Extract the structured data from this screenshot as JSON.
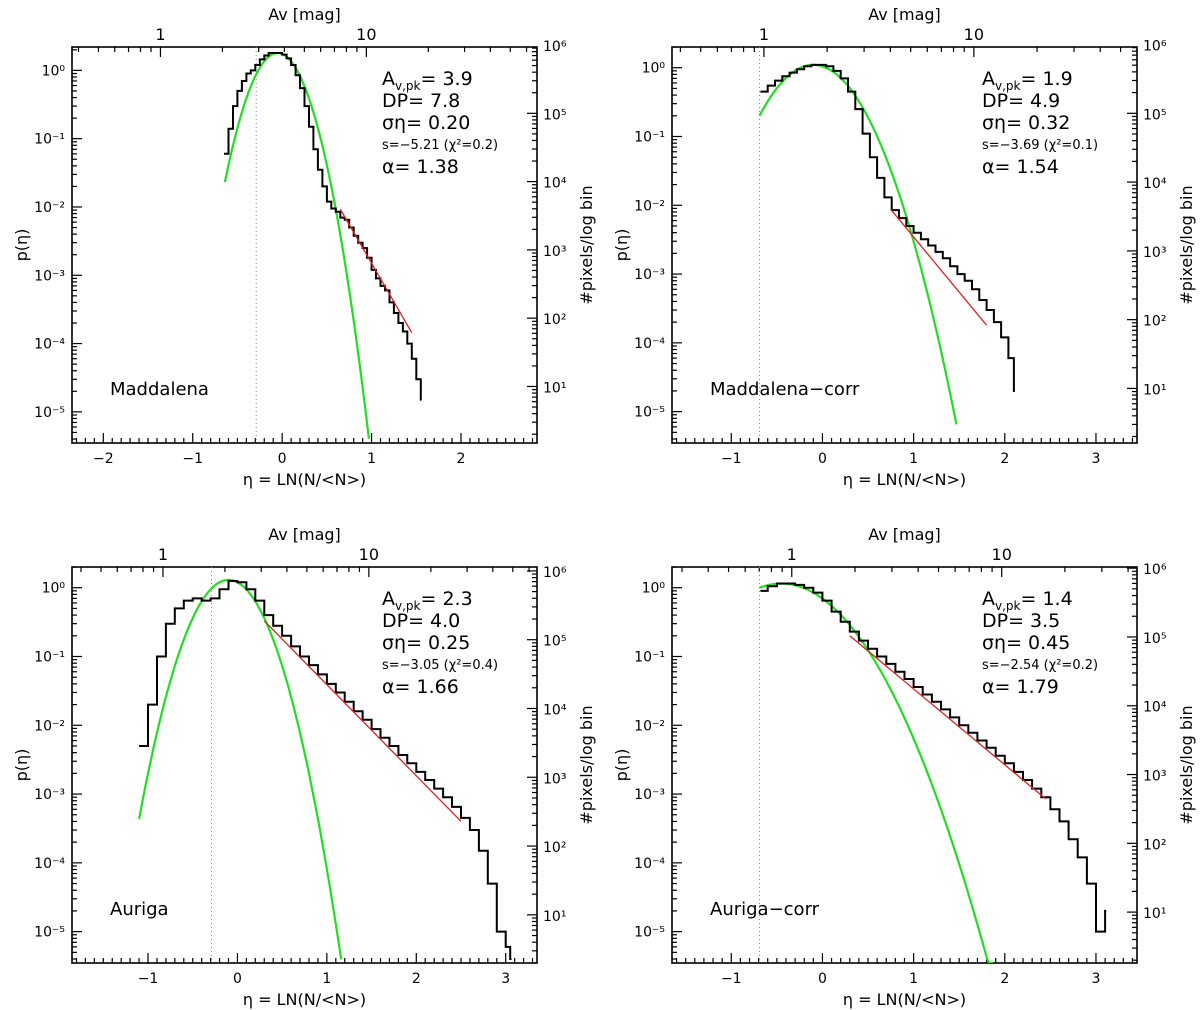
{
  "figure": {
    "xlabel": "η = LN(N/<N>)",
    "ylabel": "p(η)",
    "ylabel_right": "#pixels/log bin",
    "top_axis_label": "Av [mag]"
  },
  "chart_data": [
    {
      "type": "line",
      "name": "Maddalena",
      "title": "Maddalena",
      "xlabel": "η = LN(N/<N>)",
      "ylabel": "p(η)",
      "xlim": [
        -2.35,
        2.85
      ],
      "xticks": [
        -2,
        -1,
        0,
        1,
        2
      ],
      "ylim": [
        3.5e-06,
        2.2
      ],
      "yticks": [
        1e-05,
        0.0001,
        0.001,
        0.01,
        0.1,
        1
      ],
      "ytick_labels": [
        "10⁻⁵",
        "10⁻⁴",
        "10⁻³",
        "10⁻²",
        "10⁻¹",
        "10⁰"
      ],
      "right_ticks": [
        10,
        100,
        1000,
        10000,
        100000,
        1000000
      ],
      "right_tick_labels": [
        "10¹",
        "10²",
        "10³",
        "10⁴",
        "10⁵",
        "10⁶"
      ],
      "right_scale": 425000,
      "top_ticks": [
        1,
        10
      ],
      "top_tick_labels": [
        "1",
        "10"
      ],
      "av_pk": 3.9,
      "threshold_eta": -0.29,
      "annotations": {
        "A": "Av,pk= 3.9",
        "DP": "DP= 7.8",
        "sigma": "ση= 0.20",
        "s": "s=−5.21 (χ²=0.2)",
        "alpha": "α= 1.38"
      },
      "gauss": {
        "amp": 1.8,
        "mu": -0.05,
        "sigma": 0.2,
        "x_range": [
          -0.64,
          0.97
        ]
      },
      "power_law": {
        "x_range": [
          0.65,
          1.45
        ],
        "y0": 0.0093,
        "s": -5.21
      },
      "series": [
        {
          "name": "histogram",
          "x": [
            -0.65,
            -0.6,
            -0.55,
            -0.5,
            -0.45,
            -0.4,
            -0.35,
            -0.3,
            -0.25,
            -0.2,
            -0.15,
            -0.1,
            -0.05,
            0,
            0.05,
            0.1,
            0.15,
            0.2,
            0.25,
            0.3,
            0.35,
            0.4,
            0.45,
            0.5,
            0.55,
            0.6,
            0.65,
            0.7,
            0.75,
            0.8,
            0.85,
            0.9,
            0.95,
            1,
            1.05,
            1.1,
            1.15,
            1.2,
            1.25,
            1.3,
            1.35,
            1.4,
            1.45,
            1.5,
            1.55
          ],
          "y": [
            0.06,
            0.14,
            0.3,
            0.5,
            0.7,
            0.9,
            1.0,
            1.2,
            1.45,
            1.65,
            1.8,
            1.8,
            1.8,
            1.7,
            1.5,
            1.2,
            0.85,
            0.55,
            0.3,
            0.15,
            0.07,
            0.035,
            0.02,
            0.012,
            0.0095,
            0.0085,
            0.007,
            0.0065,
            0.005,
            0.0038,
            0.003,
            0.0025,
            0.0018,
            0.0012,
            0.0009,
            0.0007,
            0.0006,
            0.0004,
            0.00028,
            0.0002,
            0.00015,
            0.0001,
            6e-05,
            3e-05,
            1.5e-05
          ]
        }
      ]
    },
    {
      "type": "line",
      "name": "Maddalena-corr",
      "title": "Maddalena−corr",
      "xlabel": "η = LN(N/<N>)",
      "ylabel": "p(η)",
      "xlim": [
        -1.65,
        3.45
      ],
      "xticks": [
        -1,
        0,
        1,
        2,
        3
      ],
      "ylim": [
        3.5e-06,
        2.0
      ],
      "yticks": [
        1e-05,
        0.0001,
        0.001,
        0.01,
        0.1,
        1
      ],
      "ytick_labels": [
        "10⁻⁵",
        "10⁻⁴",
        "10⁻³",
        "10⁻²",
        "10⁻¹",
        "10⁰"
      ],
      "right_ticks": [
        10,
        100,
        1000,
        10000,
        100000,
        1000000
      ],
      "right_tick_labels": [
        "10¹",
        "10²",
        "10³",
        "10⁴",
        "10⁵",
        "10⁶"
      ],
      "right_scale": 460000,
      "top_ticks": [
        1,
        10
      ],
      "top_tick_labels": [
        "1",
        "10"
      ],
      "av_pk": 1.9,
      "threshold_eta": -0.69,
      "annotations": {
        "A": "Av,pk= 1.9",
        "DP": "DP= 4.9",
        "sigma": "ση= 0.32",
        "s": "s=−3.69 (χ²=0.1)",
        "alpha": "α= 1.54"
      },
      "gauss": {
        "amp": 1.1,
        "mu": -0.1,
        "sigma": 0.32,
        "x_range": [
          -0.69,
          1.47
        ]
      },
      "power_law": {
        "x_range": [
          0.75,
          1.8
        ],
        "y0": 0.0087,
        "s": -3.69
      },
      "series": [
        {
          "name": "histogram",
          "x": [
            -0.68,
            -0.6,
            -0.52,
            -0.44,
            -0.36,
            -0.28,
            -0.2,
            -0.12,
            -0.04,
            0.04,
            0.12,
            0.2,
            0.28,
            0.36,
            0.44,
            0.52,
            0.6,
            0.68,
            0.76,
            0.84,
            0.92,
            1,
            1.08,
            1.16,
            1.24,
            1.32,
            1.4,
            1.48,
            1.56,
            1.64,
            1.72,
            1.8,
            1.88,
            1.96,
            2.04,
            2.1
          ],
          "y": [
            0.45,
            0.55,
            0.65,
            0.75,
            0.85,
            0.95,
            1.05,
            1.1,
            1.1,
            1.05,
            0.9,
            0.7,
            0.45,
            0.25,
            0.11,
            0.05,
            0.025,
            0.013,
            0.0085,
            0.0065,
            0.005,
            0.004,
            0.0032,
            0.0026,
            0.0021,
            0.0017,
            0.0013,
            0.001,
            0.0008,
            0.0006,
            0.00042,
            0.0003,
            0.0002,
            0.00012,
            6e-05,
            2e-05
          ]
        }
      ]
    },
    {
      "type": "line",
      "name": "Auriga",
      "title": "Auriga",
      "xlabel": "η = LN(N/<N>)",
      "ylabel": "p(η)",
      "xlim": [
        -1.85,
        3.35
      ],
      "xticks": [
        -1,
        0,
        1,
        2,
        3
      ],
      "ylim": [
        3.5e-06,
        2.0
      ],
      "yticks": [
        1e-05,
        0.0001,
        0.001,
        0.01,
        0.1,
        1
      ],
      "ytick_labels": [
        "10⁻⁵",
        "10⁻⁴",
        "10⁻³",
        "10⁻²",
        "10⁻¹",
        "10⁰"
      ],
      "right_ticks": [
        10,
        100,
        1000,
        10000,
        100000,
        1000000
      ],
      "right_tick_labels": [
        "10¹",
        "10²",
        "10³",
        "10⁴",
        "10⁵",
        "10⁶"
      ],
      "right_scale": 570000,
      "top_ticks": [
        1,
        10
      ],
      "top_tick_labels": [
        "1",
        "10"
      ],
      "av_pk": 2.3,
      "threshold_eta": -0.29,
      "annotations": {
        "A": "Av,pk= 2.3",
        "DP": "DP= 4.0",
        "sigma": "ση= 0.25",
        "s": "s=−3.05 (χ²=0.4)",
        "alpha": "α= 1.66"
      },
      "gauss": {
        "amp": 1.3,
        "mu": -0.1,
        "sigma": 0.25,
        "x_range": [
          -1.1,
          1.16
        ]
      },
      "power_law": {
        "x_range": [
          0.3,
          2.5
        ],
        "y0": 0.33,
        "s": -3.05
      },
      "series": [
        {
          "name": "histogram",
          "x": [
            -1.1,
            -1,
            -0.9,
            -0.8,
            -0.7,
            -0.6,
            -0.5,
            -0.4,
            -0.3,
            -0.2,
            -0.1,
            0,
            0.1,
            0.2,
            0.3,
            0.4,
            0.5,
            0.6,
            0.7,
            0.8,
            0.9,
            1,
            1.1,
            1.2,
            1.3,
            1.4,
            1.5,
            1.6,
            1.7,
            1.8,
            1.9,
            2,
            2.1,
            2.2,
            2.3,
            2.4,
            2.5,
            2.6,
            2.7,
            2.8,
            2.9,
            3,
            3.05
          ],
          "y": [
            0.005,
            0.02,
            0.1,
            0.3,
            0.5,
            0.65,
            0.7,
            0.65,
            0.7,
            0.95,
            1.25,
            1.2,
            0.95,
            0.65,
            0.4,
            0.28,
            0.2,
            0.14,
            0.1,
            0.075,
            0.055,
            0.04,
            0.03,
            0.022,
            0.016,
            0.012,
            0.0088,
            0.0066,
            0.005,
            0.0037,
            0.0028,
            0.0021,
            0.0016,
            0.0012,
            0.0009,
            0.00065,
            0.00045,
            0.0003,
            0.00015,
            5e-05,
            1e-05,
            6e-06,
            4e-06
          ]
        }
      ]
    },
    {
      "type": "line",
      "name": "Auriga-corr",
      "title": "Auriga−corr",
      "xlabel": "η = LN(N/<N>)",
      "ylabel": "p(η)",
      "xlim": [
        -1.65,
        3.45
      ],
      "xticks": [
        -1,
        0,
        1,
        2,
        3
      ],
      "ylim": [
        3.5e-06,
        2.0
      ],
      "yticks": [
        1e-05,
        0.0001,
        0.001,
        0.01,
        0.1,
        1
      ],
      "ytick_labels": [
        "10⁻⁵",
        "10⁻⁴",
        "10⁻³",
        "10⁻²",
        "10⁻¹",
        "10⁰"
      ],
      "right_ticks": [
        10,
        100,
        1000,
        10000,
        100000,
        1000000
      ],
      "right_tick_labels": [
        "10¹",
        "10²",
        "10³",
        "10⁴",
        "10⁵",
        "10⁶"
      ],
      "right_scale": 520000,
      "top_ticks": [
        1,
        10
      ],
      "top_tick_labels": [
        "1",
        "10"
      ],
      "av_pk": 1.4,
      "threshold_eta": -0.69,
      "annotations": {
        "A": "Av,pk= 1.4",
        "DP": "DP= 3.5",
        "sigma": "ση= 0.45",
        "s": "s=−2.54 (χ²=0.2)",
        "alpha": "α= 1.79"
      },
      "gauss": {
        "amp": 1.15,
        "mu": -0.45,
        "sigma": 0.45,
        "x_range": [
          -0.69,
          1.87
        ]
      },
      "power_law": {
        "x_range": [
          0.3,
          2.45
        ],
        "y0": 0.2,
        "s": -2.54
      },
      "series": [
        {
          "name": "histogram",
          "x": [
            -0.68,
            -0.6,
            -0.5,
            -0.4,
            -0.3,
            -0.2,
            -0.1,
            0,
            0.1,
            0.2,
            0.3,
            0.4,
            0.5,
            0.6,
            0.7,
            0.8,
            0.9,
            1,
            1.1,
            1.2,
            1.3,
            1.4,
            1.5,
            1.6,
            1.7,
            1.8,
            1.9,
            2,
            2.1,
            2.2,
            2.3,
            2.4,
            2.5,
            2.6,
            2.7,
            2.8,
            2.9,
            3,
            3.1
          ],
          "y": [
            0.9,
            1.05,
            1.15,
            1.15,
            1.1,
            1.0,
            0.85,
            0.65,
            0.45,
            0.32,
            0.23,
            0.17,
            0.13,
            0.1,
            0.078,
            0.06,
            0.047,
            0.036,
            0.028,
            0.022,
            0.017,
            0.013,
            0.01,
            0.0078,
            0.006,
            0.0047,
            0.0036,
            0.0028,
            0.0021,
            0.0016,
            0.0012,
            0.0009,
            0.0006,
            0.0004,
            0.00022,
            0.00012,
            5e-05,
            1e-05,
            2e-05
          ]
        }
      ]
    }
  ]
}
